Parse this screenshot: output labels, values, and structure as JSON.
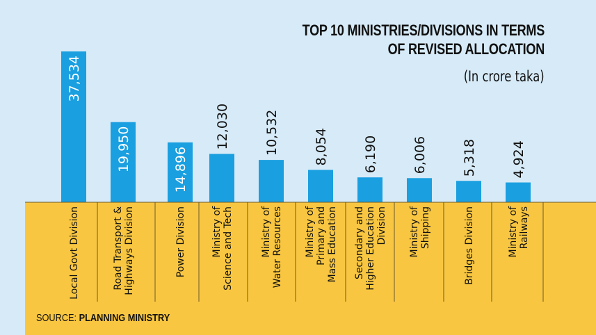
{
  "header": {
    "title_line1": "TOP 10 MINISTRIES/DIVISIONS IN TERMS",
    "title_line2": "OF REVISED ALLOCATION",
    "subtitle": "(In crore taka)"
  },
  "footer": {
    "source_prefix": "SOURCE:",
    "source_name": "PLANNING MINISTRY"
  },
  "colors": {
    "background": "#d6eaf7",
    "bar": "#1a9fe0",
    "panel": "#f8c641",
    "text": "#111111"
  },
  "chart_data": {
    "type": "bar",
    "title": "TOP 10 MINISTRIES/DIVISIONS IN TERMS OF REVISED ALLOCATION",
    "subtitle": "(In crore taka)",
    "categories": [
      [
        "Local Govt Division"
      ],
      [
        "Road Transport &",
        "Highways Division"
      ],
      [
        "Power Division"
      ],
      [
        "Ministry of",
        "Science and Tech"
      ],
      [
        "Ministry of",
        "Water Resources"
      ],
      [
        "Ministry of",
        "Primary and",
        "Mass Education"
      ],
      [
        "Secondary and",
        "Higher Education",
        "Division"
      ],
      [
        "Ministry of",
        "Shipping"
      ],
      [
        "Bridges Division"
      ],
      [
        "Ministry of",
        "Railways"
      ]
    ],
    "values": [
      37534,
      19950,
      14896,
      12030,
      10532,
      8054,
      6190,
      6006,
      5318,
      4924
    ],
    "value_labels": [
      "37,534",
      "19,950",
      "14,896",
      "12,030",
      "10,532",
      "8,054",
      "6,190",
      "6,006",
      "5,318",
      "4,924"
    ],
    "label_inside_bar": [
      true,
      true,
      true,
      false,
      false,
      false,
      false,
      false,
      false,
      false
    ],
    "source": "SOURCE: PLANNING MINISTRY"
  }
}
